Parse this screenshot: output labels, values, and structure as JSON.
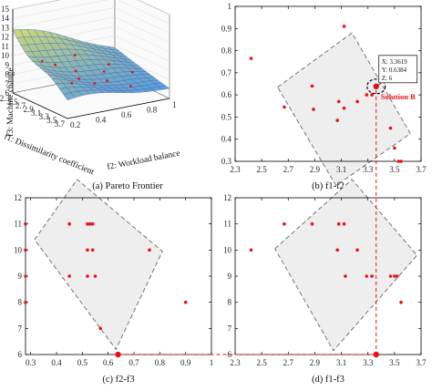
{
  "colors": {
    "point": "#e8111b",
    "guide": "#e8111b",
    "region_fill": "#eeeeee",
    "region_stroke": "#555555"
  },
  "chart_data": [
    {
      "id": "a",
      "type": "surface",
      "caption": "(a) Pareto Frontier",
      "xlabel": "f1: Dissimilarity coefficient",
      "ylabel": "f2: Workload balance",
      "zlabel": "f3: Machine change",
      "x_ticks": [
        "2.3",
        "2.5",
        "2.7",
        "2.9",
        "3.1",
        "3.3",
        "3.5",
        "3.7"
      ],
      "y_ticks": [
        "0.2",
        "0.4",
        "0.6",
        "0.8",
        "1"
      ],
      "z_ticks": [
        "6",
        "7",
        "8",
        "9",
        "10",
        "11",
        "12",
        "13",
        "14",
        "15"
      ],
      "xlim": [
        2.3,
        3.7
      ],
      "ylim": [
        0.2,
        1
      ],
      "zlim": [
        6,
        15
      ]
    },
    {
      "id": "b",
      "type": "scatter",
      "caption": "(b) f1-f2",
      "x_ticks": [
        "2.3",
        "2.5",
        "2.7",
        "2.9",
        "3.1",
        "3.3",
        "3.5",
        "3.7"
      ],
      "y_ticks": [
        "0.3",
        "0.4",
        "0.5",
        "0.6",
        "0.7",
        "0.8",
        "0.9",
        "1"
      ],
      "xlim": [
        2.3,
        3.7
      ],
      "ylim": [
        0.3,
        1
      ],
      "points": [
        [
          2.42,
          0.765
        ],
        [
          3.12,
          0.91
        ],
        [
          2.67,
          0.545
        ],
        [
          2.88,
          0.64
        ],
        [
          2.89,
          0.535
        ],
        [
          3.07,
          0.485
        ],
        [
          3.08,
          0.57
        ],
        [
          3.12,
          0.54
        ],
        [
          3.22,
          0.57
        ],
        [
          3.29,
          0.6
        ],
        [
          3.33,
          0.6
        ],
        [
          3.47,
          0.45
        ],
        [
          3.5,
          0.36
        ],
        [
          3.53,
          0.3
        ],
        [
          3.55,
          0.3
        ],
        [
          3.3619,
          0.6384
        ]
      ],
      "region": [
        [
          2.62,
          0.635
        ],
        [
          3.18,
          0.88
        ],
        [
          3.62,
          0.425
        ],
        [
          3.06,
          0.19
        ]
      ],
      "highlight": {
        "label": "Solution B",
        "x": 3.3619,
        "y": 0.6384,
        "z": 6
      },
      "datatip": [
        "X: 3.3619",
        "Y: 0.6384",
        "Z: 6"
      ]
    },
    {
      "id": "c",
      "type": "scatter",
      "caption": "(c) f2-f3",
      "x_ticks": [
        "0.3",
        "0.4",
        "0.5",
        "0.6",
        "0.7",
        "0.8",
        "0.9",
        "1"
      ],
      "y_ticks": [
        "6",
        "7",
        "8",
        "9",
        "10",
        "11",
        "12"
      ],
      "xlim": [
        0.28,
        1
      ],
      "ylim": [
        6,
        12
      ],
      "points": [
        [
          0.28,
          11
        ],
        [
          0.28,
          10
        ],
        [
          0.28,
          9
        ],
        [
          0.28,
          8
        ],
        [
          0.45,
          11
        ],
        [
          0.45,
          9
        ],
        [
          0.52,
          11
        ],
        [
          0.53,
          11
        ],
        [
          0.54,
          11
        ],
        [
          0.52,
          10
        ],
        [
          0.54,
          10
        ],
        [
          0.52,
          9
        ],
        [
          0.55,
          9
        ],
        [
          0.57,
          7
        ],
        [
          0.76,
          10
        ],
        [
          0.9,
          8
        ],
        [
          0.6384,
          6
        ]
      ],
      "region": [
        [
          0.315,
          10.4
        ],
        [
          0.48,
          12.7
        ],
        [
          0.81,
          9.95
        ],
        [
          0.63,
          6.2
        ]
      ],
      "highlight": {
        "x": 0.6384,
        "y": 6
      }
    },
    {
      "id": "d",
      "type": "scatter",
      "caption": "(d) f1-f3",
      "x_ticks": [
        "2.3",
        "2.5",
        "2.7",
        "2.9",
        "3.1",
        "3.3",
        "3.5",
        "3.7"
      ],
      "y_ticks": [
        "6",
        "7",
        "8",
        "9",
        "10",
        "11",
        "12"
      ],
      "xlim": [
        2.3,
        3.7
      ],
      "ylim": [
        6,
        12
      ],
      "points": [
        [
          2.42,
          10
        ],
        [
          2.67,
          11
        ],
        [
          2.88,
          11
        ],
        [
          3.08,
          11
        ],
        [
          3.12,
          11
        ],
        [
          3.07,
          10
        ],
        [
          3.13,
          9
        ],
        [
          3.22,
          10
        ],
        [
          3.29,
          9
        ],
        [
          3.33,
          9
        ],
        [
          3.47,
          9
        ],
        [
          3.5,
          9
        ],
        [
          3.52,
          9
        ],
        [
          3.55,
          8
        ],
        [
          3.3619,
          6
        ]
      ],
      "region": [
        [
          2.6,
          10.05
        ],
        [
          3.18,
          12.7
        ],
        [
          3.67,
          9.8
        ],
        [
          3.04,
          6.15
        ]
      ],
      "highlight": {
        "x": 3.3619,
        "y": 6
      }
    }
  ]
}
